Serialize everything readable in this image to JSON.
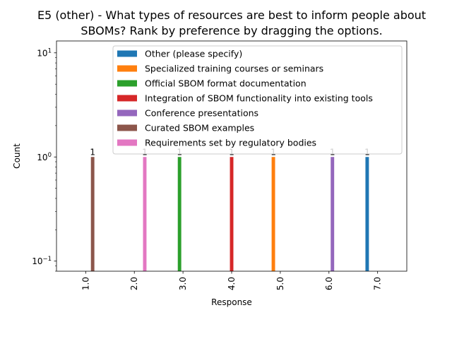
{
  "chart_data": {
    "type": "bar",
    "title_lines": [
      "E5 (other) - What types of resources are best to inform people about",
      "SBOMs? Rank by preference by dragging the options."
    ],
    "xlabel": "Response",
    "ylabel": "Count",
    "yscale": "log",
    "ylim": [
      0.08,
      13
    ],
    "yticks": [
      {
        "value": 0.1,
        "base": "10",
        "exp": "−1"
      },
      {
        "value": 1,
        "base": "10",
        "exp": "0"
      },
      {
        "value": 10,
        "base": "10",
        "exp": "1"
      }
    ],
    "categories": [
      "1.0",
      "2.0",
      "3.0",
      "4.0",
      "5.0",
      "6.0",
      "7.0"
    ],
    "legend_position": "top-right",
    "grid": false,
    "series": [
      {
        "name": "Other (please specify)",
        "color": "#1f77b4",
        "values": [
          0,
          0,
          0,
          0,
          0,
          0,
          1
        ]
      },
      {
        "name": "Specialized training courses or seminars",
        "color": "#ff7f0e",
        "values": [
          0,
          0,
          0,
          0,
          1,
          0,
          0
        ]
      },
      {
        "name": "Official SBOM format documentation",
        "color": "#2ca02c",
        "values": [
          0,
          0,
          1,
          0,
          0,
          0,
          0
        ]
      },
      {
        "name": "Integration of SBOM functionality into existing tools",
        "color": "#d62728",
        "values": [
          0,
          0,
          0,
          1,
          0,
          0,
          0
        ]
      },
      {
        "name": "Conference presentations",
        "color": "#9467bd",
        "values": [
          0,
          0,
          0,
          0,
          0,
          1,
          0
        ]
      },
      {
        "name": "Curated SBOM examples",
        "color": "#8c564b",
        "values": [
          1,
          0,
          0,
          0,
          0,
          0,
          0
        ]
      },
      {
        "name": "Requirements set by regulatory bodies",
        "color": "#e377c2",
        "values": [
          0,
          1,
          0,
          0,
          0,
          0,
          0
        ]
      }
    ]
  }
}
